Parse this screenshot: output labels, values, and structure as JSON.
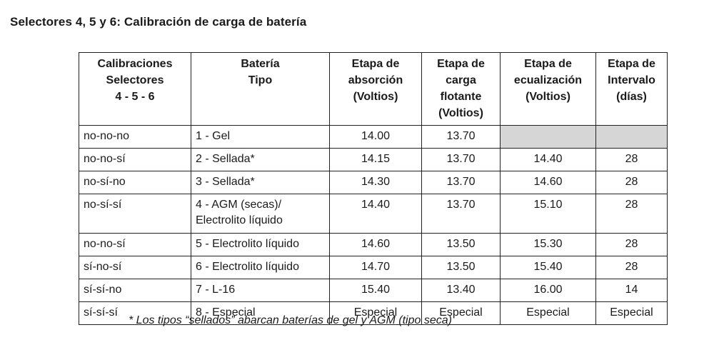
{
  "heading": "Selectores 4, 5 y 6: Calibración de carga de batería",
  "table": {
    "headers": [
      "Calibraciones\nSelectores\n4 - 5 - 6",
      "Batería\nTipo",
      "Etapa de\nabsorción\n(Voltios)",
      "Etapa de\ncarga\nflotante\n(Voltios)",
      "Etapa de\necualización\n(Voltios)",
      "Etapa de\nIntervalo\n(días)"
    ],
    "rows": [
      {
        "selectors": "no-no-no",
        "type": "1 - Gel",
        "absorption": "14.00",
        "float": "13.70",
        "equalization": "",
        "interval": ""
      },
      {
        "selectors": "no-no-sí",
        "type": "2 - Sellada*",
        "absorption": "14.15",
        "float": "13.70",
        "equalization": "14.40",
        "interval": "28"
      },
      {
        "selectors": "no-sí-no",
        "type": "3 - Sellada*",
        "absorption": "14.30",
        "float": "13.70",
        "equalization": "14.60",
        "interval": "28"
      },
      {
        "selectors": "no-sí-sí",
        "type": "4 - AGM (secas)/\nElectrolito líquido",
        "absorption": "14.40",
        "float": "13.70",
        "equalization": "15.10",
        "interval": "28"
      },
      {
        "selectors": "no-no-sí",
        "type": "5 - Electrolito líquido",
        "absorption": "14.60",
        "float": "13.50",
        "equalization": "15.30",
        "interval": "28"
      },
      {
        "selectors": "sí-no-sí",
        "type": "6 - Electrolito líquido",
        "absorption": "14.70",
        "float": "13.50",
        "equalization": "15.40",
        "interval": "28"
      },
      {
        "selectors": "sí-sí-no",
        "type": "7 - L-16",
        "absorption": "15.40",
        "float": "13.40",
        "equalization": "16.00",
        "interval": "14"
      },
      {
        "selectors": "sí-sí-sí",
        "type": "8 - Especial",
        "absorption": "Especial",
        "float": "Especial",
        "equalization": "Especial",
        "interval": "Especial"
      }
    ],
    "empty_cell_color": "#d6d6d6"
  },
  "footnote": "* Los tipos “sellados” abarcan baterías de gel y AGM (tipo seca)"
}
